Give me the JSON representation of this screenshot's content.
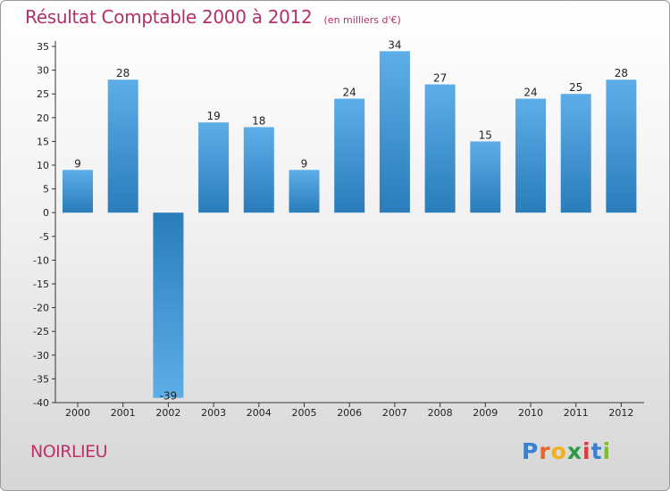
{
  "title": "Résultat Comptable 2000 à 2012",
  "subtitle": "(en milliers d'€)",
  "commune": "NOIRLIEU",
  "logo": {
    "letters": [
      {
        "char": "P",
        "color": "#3a7fd0"
      },
      {
        "char": "r",
        "color": "#e8642a"
      },
      {
        "char": "o",
        "color": "#f2b11c"
      },
      {
        "char": "x",
        "color": "#2b9b44"
      },
      {
        "char": "i",
        "color": "#e03a3a"
      },
      {
        "char": "t",
        "color": "#3a7fd0"
      },
      {
        "char": "i",
        "color": "#7bbf2f"
      }
    ]
  },
  "colors": {
    "bar_top": "#5daee8",
    "bar_bottom": "#2a7cba",
    "axis": "#333333",
    "title": "#b0306a"
  },
  "chart_data": {
    "type": "bar",
    "title": "Résultat Comptable 2000 à 2012",
    "ylabel": "en milliers d'€",
    "xlabel": "",
    "categories": [
      "2000",
      "2001",
      "2002",
      "2003",
      "2004",
      "2005",
      "2006",
      "2007",
      "2008",
      "2009",
      "2010",
      "2011",
      "2012"
    ],
    "values": [
      9,
      28,
      -39,
      19,
      18,
      9,
      24,
      34,
      27,
      15,
      24,
      25,
      28
    ],
    "ylim": [
      -40,
      35
    ],
    "yticks": [
      35,
      30,
      25,
      20,
      15,
      10,
      5,
      0,
      -5,
      -10,
      -15,
      -20,
      -25,
      -30,
      -35,
      -40
    ],
    "grid": false
  }
}
